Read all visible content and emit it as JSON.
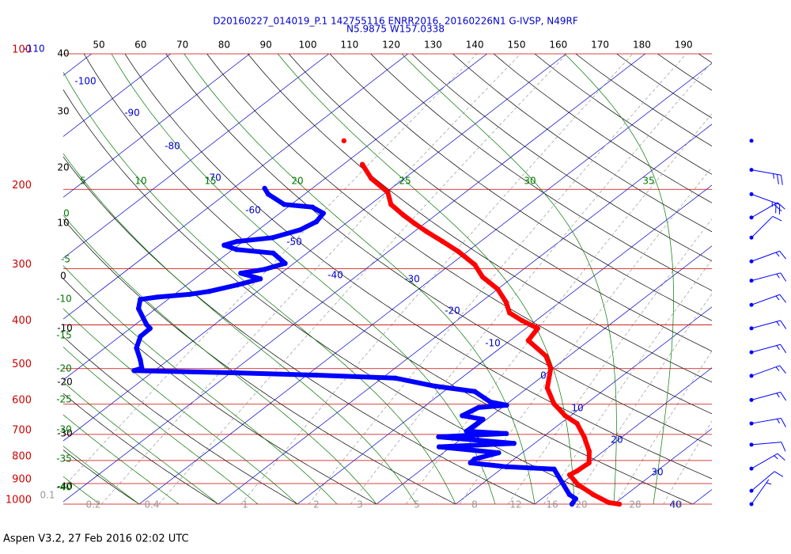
{
  "chart_data": {
    "type": "skewt",
    "title": "D20160227_014019_P.1 142755116 ENRR2016, 20160226N1 G-IVSP, N49RF",
    "subtitle": "N5.9875 W157.0338",
    "footer": "Aspen V3.2, 27 Feb 2016  02:02 UTC",
    "ylim": [
      100,
      1000
    ],
    "log_y": true,
    "pressure_ticks": [
      100,
      200,
      300,
      400,
      500,
      600,
      700,
      800,
      900,
      1000
    ],
    "isobar_color": "#cc0000",
    "isotherm_labels": [
      -110,
      -100,
      -90,
      -80,
      -70,
      -60,
      -50,
      -40,
      -30,
      -20,
      -10,
      0,
      10,
      20,
      30,
      40
    ],
    "isotherm_color": "#0000cc",
    "theta_left_labels": [
      40,
      30,
      20,
      10,
      0,
      -10,
      -20,
      -30,
      -40
    ],
    "theta_top_labels": [
      50,
      60,
      70,
      80,
      90,
      100,
      110,
      120,
      130,
      140,
      150,
      160,
      170,
      180,
      190
    ],
    "dry_adiabat_color": "#000000",
    "wet_adiabat_left_labels": [
      0,
      -5,
      -10,
      -15,
      -20,
      -25,
      -30,
      -35,
      -40
    ],
    "wet_adiabat_top_labels": [
      5,
      10,
      15,
      20,
      25,
      30,
      35
    ],
    "wet_adiabat_color": "#007700",
    "mixing_ratio_labels": [
      0.1,
      0.2,
      0.4,
      1,
      2,
      3,
      5,
      8,
      12,
      16,
      20,
      28,
      40
    ],
    "mixing_ratio_color": "#999999",
    "series": [
      {
        "color": "#ff0000",
        "pressure": [
          156
        ],
        "values": [
          -63.8
        ]
      },
      {
        "color": "#ff0000",
        "pressure": [
          176,
          189,
          203,
          216,
          228,
          238,
          248,
          261,
          275,
          294,
          313,
          333,
          356,
          376,
          391,
          407,
          433,
          469,
          499,
          552,
          598,
          636,
          662,
          709,
          763,
          810,
          844,
          861,
          904,
          952,
          992,
          1000
        ],
        "values": [
          -57.6,
          -54.2,
          -49.8,
          -47.4,
          -44.1,
          -41.3,
          -38.5,
          -34.8,
          -31.1,
          -26.9,
          -23.9,
          -20,
          -16.8,
          -14.6,
          -11.8,
          -8.5,
          -7.7,
          -2.9,
          -0.3,
          2.5,
          5.9,
          9.3,
          12.1,
          15.2,
          18.2,
          20.1,
          19.9,
          19.6,
          22.2,
          25.8,
          29.1,
          30.7
        ]
      },
      {
        "color": "#0000ff",
        "pressure": [
          199,
          205,
          216,
          219,
          226,
          236,
          246,
          256,
          261,
          266,
          272,
          277,
          292,
          301,
          307,
          316,
          326,
          337,
          342,
          347,
          351,
          368,
          399,
          407,
          424,
          450,
          479,
          499,
          505,
          511,
          517,
          525,
          547,
          562,
          593,
          603,
          610,
          636,
          648,
          689,
          697,
          709,
          733,
          746,
          769,
          794,
          810,
          826,
          836,
          895,
          952,
          973,
          1000
        ],
        "values": [
          -66,
          -64.6,
          -60.9,
          -56.9,
          -54.5,
          -54,
          -54.7,
          -56.9,
          -60.8,
          -61.8,
          -59.5,
          -54.3,
          -51.1,
          -52.7,
          -55.1,
          -51.7,
          -53.6,
          -56.1,
          -58.1,
          -61.7,
          -63.5,
          -62.2,
          -58.6,
          -57.5,
          -57.4,
          -56,
          -53.5,
          -52,
          -52.6,
          -39.2,
          -28.8,
          -18.3,
          -12,
          -6.1,
          -2.4,
          0.2,
          -3,
          -3.7,
          -0.5,
          -0.6,
          4.8,
          -3.2,
          7.4,
          -1.5,
          7,
          5,
          5.1,
          10.3,
          16.7,
          19.9,
          22.8,
          24.3,
          24.7
        ]
      }
    ],
    "wind": {
      "color": "#0000ff",
      "pressure": [
        156,
        181,
        205,
        231,
        256,
        289,
        319,
        361,
        407,
        460,
        519,
        587,
        662,
        738,
        834,
        934,
        1000
      ],
      "direction": [
        0,
        100,
        110,
        60,
        45,
        70,
        75,
        70,
        75,
        75,
        70,
        75,
        80,
        85,
        60,
        50,
        35
      ],
      "speed": [
        0,
        25,
        25,
        20,
        10,
        15,
        15,
        15,
        15,
        15,
        15,
        15,
        15,
        10,
        15,
        10,
        5
      ]
    }
  }
}
